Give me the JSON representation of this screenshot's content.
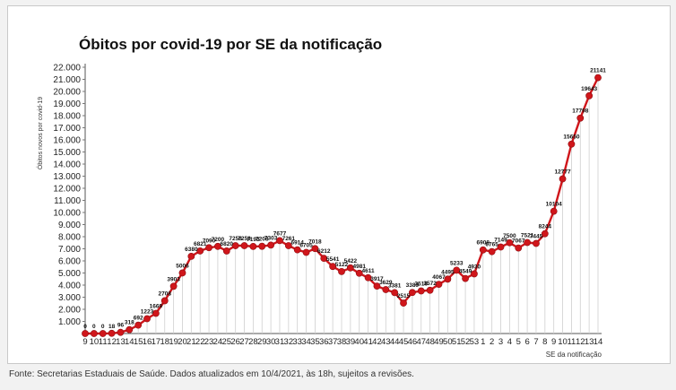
{
  "page": {
    "source_note": "Fonte: Secretarias Estaduais de Saúde. Dados atualizados em 10/4/2021, às 18h, sujeitos a revisões."
  },
  "chart_data": {
    "type": "line",
    "title": "Óbitos por covid-19 por SE da notificação",
    "xlabel": "SE da notificação",
    "ylabel": "Óbitos novos por covid-19",
    "ylim": [
      0,
      22000
    ],
    "y_ticks": [
      "1.000",
      "2.000",
      "3.000",
      "4.000",
      "5.000",
      "6.000",
      "7.000",
      "8.000",
      "9.000",
      "10.000",
      "11.000",
      "12.000",
      "13.000",
      "14.000",
      "15.000",
      "16.000",
      "17.000",
      "18.000",
      "19.000",
      "20.000",
      "21.000",
      "22.000"
    ],
    "categories": [
      "9",
      "10",
      "11",
      "12",
      "13",
      "14",
      "15",
      "16",
      "17",
      "18",
      "19",
      "20",
      "21",
      "22",
      "23",
      "24",
      "25",
      "26",
      "27",
      "28",
      "29",
      "30",
      "31",
      "32",
      "33",
      "34",
      "35",
      "36",
      "37",
      "38",
      "39",
      "40",
      "41",
      "42",
      "43",
      "44",
      "45",
      "46",
      "47",
      "48",
      "49",
      "50",
      "51",
      "52",
      "53",
      "1",
      "2",
      "3",
      "4",
      "5",
      "6",
      "7",
      "8",
      "9",
      "10",
      "11",
      "12",
      "13",
      "14"
    ],
    "series": [
      {
        "color": "#d0161b",
        "values": [
          0,
          0,
          0,
          18,
          96,
          318,
          692,
          1223,
          1669,
          2708,
          3903,
          5006,
          6380,
          6821,
          7090,
          7200,
          6820,
          7256,
          7258,
          7193,
          7208,
          7303,
          7677,
          7261,
          6914,
          6705,
          7018,
          6212,
          5541,
          5122,
          5422,
          4981,
          4611,
          3917,
          3629,
          3381,
          2515,
          3389,
          3516,
          3572,
          4067,
          4495,
          5233,
          4549,
          4930,
          6908,
          6765,
          7149,
          7500,
          7067,
          7521,
          7445,
          8244,
          10104,
          12777,
          15650,
          17798,
          19643,
          21141
        ]
      }
    ],
    "data_labels": [
      "0",
      "0",
      "0",
      "18",
      "96",
      "318",
      "692",
      "1223",
      "1669",
      "2708",
      "3903",
      "5006",
      "6380",
      "6821",
      "7090",
      "7200",
      "6820",
      "7256",
      "7258",
      "7193",
      "7208",
      "7303",
      "7677",
      "7261",
      "6914",
      "6705",
      "7018",
      "6212",
      "5541",
      "5122",
      "5422",
      "4981",
      "4611",
      "3917",
      "3629",
      "3381",
      "2515",
      "3389",
      "3516",
      "3572",
      "4067",
      "4495",
      "5233",
      "4549",
      "4930",
      "6908",
      "6765",
      "7149",
      "7500",
      "7067",
      "7521",
      "7445",
      "8244",
      "10104",
      "12777",
      "15650",
      "17798",
      "19643",
      "21141"
    ],
    "grid": true,
    "legend": "none"
  }
}
